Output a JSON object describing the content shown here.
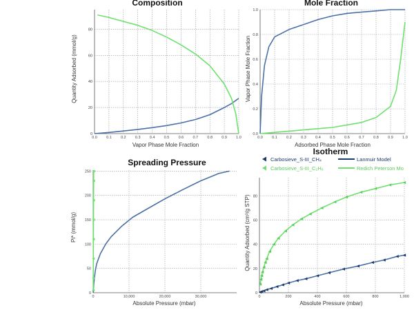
{
  "colors": {
    "ch4": "#4a6fa5",
    "c2h6": "#6ee06e",
    "dark": "#1a3a6e"
  },
  "chart_data": [
    {
      "type": "line",
      "title": "Composition",
      "xlabel": "Vapor Phase Mole Fraction",
      "ylabel": "Quantity Adsorbed (mmol/g)",
      "xlim": [
        0,
        1
      ],
      "ylim": [
        0,
        95
      ],
      "x_ticks": [
        "0.0",
        "0.1",
        "0.2",
        "0.3",
        "0.4",
        "0.5",
        "0.6",
        "0.7",
        "0.8",
        "0.9",
        "1.0"
      ],
      "y_ticks": [
        "0",
        "20",
        "40",
        "60",
        "80"
      ],
      "grid": true,
      "series": [
        {
          "color": "#4a6fa5",
          "x": [
            0,
            0.1,
            0.2,
            0.3,
            0.4,
            0.5,
            0.6,
            0.7,
            0.8,
            0.9,
            0.95,
            1.0
          ],
          "y": [
            0,
            0.9,
            2,
            3.2,
            4.6,
            6.2,
            8.2,
            10.8,
            14.5,
            20,
            23,
            27
          ]
        },
        {
          "color": "#6ee06e",
          "x": [
            0.02,
            0.1,
            0.2,
            0.3,
            0.4,
            0.5,
            0.6,
            0.7,
            0.8,
            0.9,
            0.95,
            0.98,
            1.0
          ],
          "y": [
            91,
            89,
            86,
            83,
            79,
            74,
            68,
            61,
            52,
            38,
            27,
            15,
            0
          ]
        }
      ]
    },
    {
      "type": "line",
      "title": "Mole Fraction",
      "xlabel": "Adsorbed Phase Mole Fraction",
      "ylabel": "Vapor Phase Mole Fraction",
      "xlim": [
        0,
        1
      ],
      "ylim": [
        0,
        1
      ],
      "x_ticks": [
        "0.0",
        "0.1",
        "0.2",
        "0.3",
        "0.4",
        "0.5",
        "0.6",
        "0.7",
        "0.8",
        "0.9",
        "1.0"
      ],
      "y_ticks": [
        "0.0",
        "0.2",
        "0.4",
        "0.6",
        "0.8",
        "1.0"
      ],
      "grid": true,
      "series": [
        {
          "color": "#4a6fa5",
          "x": [
            0,
            0.01,
            0.03,
            0.06,
            0.1,
            0.2,
            0.3,
            0.4,
            0.5,
            0.6,
            0.7,
            0.8,
            0.9,
            1.0
          ],
          "y": [
            0,
            0.3,
            0.55,
            0.7,
            0.78,
            0.84,
            0.88,
            0.92,
            0.95,
            0.97,
            0.98,
            0.99,
            1.0,
            1.0
          ]
        },
        {
          "color": "#6ee06e",
          "x": [
            0,
            0.1,
            0.2,
            0.3,
            0.4,
            0.5,
            0.6,
            0.7,
            0.8,
            0.9,
            0.94,
            0.97,
            1.0
          ],
          "y": [
            0,
            0.01,
            0.02,
            0.03,
            0.04,
            0.05,
            0.07,
            0.09,
            0.13,
            0.22,
            0.35,
            0.6,
            0.9
          ]
        }
      ]
    },
    {
      "type": "line",
      "title": "Spreading Pressure",
      "xlabel": "Absolute Pressure (mbar)",
      "ylabel": "Pi* (mmol/g)",
      "xlim": [
        0,
        40000
      ],
      "ylim": [
        0,
        252
      ],
      "x_ticks": [
        "0",
        "10,000",
        "20,000",
        "30,000"
      ],
      "y_ticks": [
        "0",
        "50",
        "100",
        "150",
        "200",
        "250"
      ],
      "grid": true,
      "series": [
        {
          "color": "#4a6fa5",
          "x": [
            0,
            200,
            600,
            1000,
            2000,
            3500,
            5000,
            8000,
            11000,
            15000,
            20000,
            25000,
            30000,
            35000,
            38000
          ],
          "y": [
            0,
            20,
            45,
            60,
            80,
            100,
            115,
            137,
            155,
            172,
            193,
            212,
            230,
            245,
            250
          ]
        },
        {
          "color": "#6ee06e",
          "x": [
            20,
            40,
            60,
            80,
            100,
            120,
            140,
            150
          ],
          "y": [
            5,
            30,
            70,
            110,
            150,
            190,
            230,
            250
          ]
        }
      ]
    },
    {
      "type": "scatter",
      "title": "Isotherm",
      "xlabel": "Absolute Pressure (mbar)",
      "ylabel": "Quantity Adsorbed (cm³/g STP)",
      "xlim": [
        0,
        1000
      ],
      "ylim": [
        0,
        95
      ],
      "x_ticks": [
        "0",
        "200",
        "400",
        "600",
        "800",
        "1,000"
      ],
      "y_ticks": [
        "0",
        "20",
        "40",
        "60",
        "80"
      ],
      "grid": true,
      "legend": [
        {
          "label": "Carbosieve_S-III_CH₄",
          "marker": "triangle",
          "color": "#1a3a6e"
        },
        {
          "label": "Lanmuir Model",
          "marker": "line",
          "color": "#1a3a6e"
        },
        {
          "label": "Carbosieve_S-III_C₂H₆",
          "marker": "triangle",
          "color": "#6ee06e"
        },
        {
          "label": "Redich Peterson Mo",
          "marker": "line",
          "color": "#6ee06e"
        }
      ],
      "series": [
        {
          "color": "#4a6fa5",
          "x": [
            5,
            15,
            30,
            50,
            80,
            120,
            160,
            200,
            260,
            320,
            400,
            480,
            580,
            680,
            780,
            860,
            950,
            1000
          ],
          "y": [
            0.5,
            1,
            1.5,
            2.5,
            3.5,
            5,
            6.5,
            8,
            10,
            11.5,
            14,
            16.5,
            19.5,
            22,
            25,
            27,
            30,
            31
          ]
        },
        {
          "color": "#6ee06e",
          "x": [
            5,
            10,
            15,
            20,
            30,
            40,
            50,
            70,
            100,
            130,
            180,
            230,
            290,
            350,
            430,
            520,
            600,
            700,
            800,
            900,
            1000
          ],
          "y": [
            7,
            11,
            14,
            17,
            21,
            25,
            28,
            34,
            40,
            45,
            51,
            56,
            61,
            65,
            70,
            75,
            79,
            83,
            86,
            89,
            91
          ]
        }
      ]
    }
  ]
}
